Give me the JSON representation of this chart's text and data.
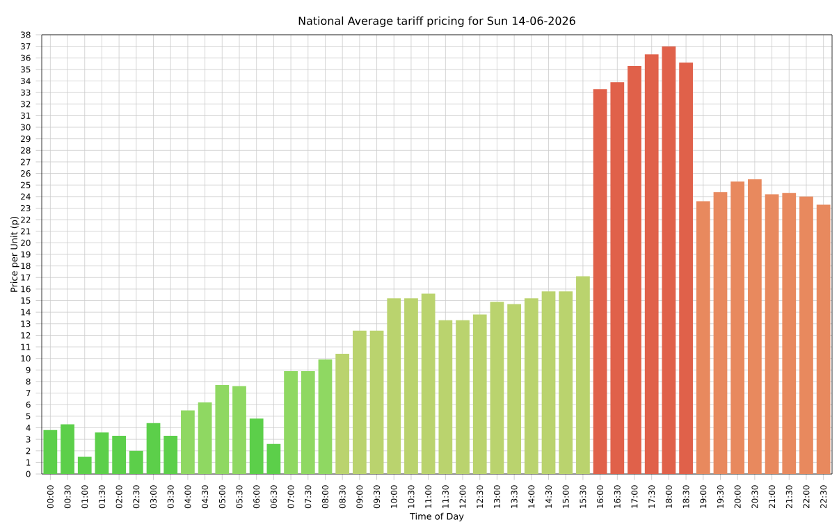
{
  "chart_data": {
    "type": "bar",
    "title": "National Average tariff pricing for Sun 14-06-2026",
    "xlabel": "Time of Day",
    "ylabel": "Price per Unit (p)",
    "categories": [
      "00:00",
      "00:30",
      "01:00",
      "01:30",
      "02:00",
      "02:30",
      "03:00",
      "03:30",
      "04:00",
      "04:30",
      "05:00",
      "05:30",
      "06:00",
      "06:30",
      "07:00",
      "07:30",
      "08:00",
      "08:30",
      "09:00",
      "09:30",
      "10:00",
      "10:30",
      "11:00",
      "11:30",
      "12:00",
      "12:30",
      "13:00",
      "13:30",
      "14:00",
      "14:30",
      "15:00",
      "15:30",
      "16:00",
      "16:30",
      "17:00",
      "17:30",
      "18:00",
      "18:30",
      "19:00",
      "19:30",
      "20:00",
      "20:30",
      "21:00",
      "21:30",
      "22:00",
      "22:30"
    ],
    "values": [
      3.8,
      4.3,
      1.5,
      3.6,
      3.3,
      2.0,
      4.4,
      3.3,
      5.5,
      6.2,
      7.7,
      7.6,
      4.8,
      2.6,
      8.9,
      8.9,
      9.9,
      10.4,
      12.4,
      12.4,
      15.2,
      15.2,
      15.6,
      13.3,
      13.3,
      13.8,
      14.9,
      14.7,
      15.2,
      15.8,
      15.8,
      17.1,
      33.3,
      33.9,
      35.3,
      36.3,
      37.0,
      35.6,
      23.6,
      24.4,
      25.3,
      25.5,
      24.2,
      24.3,
      24.0,
      23.3
    ],
    "colors": [
      "#5ccf4a",
      "#5ccf4a",
      "#5ccf4a",
      "#5ccf4a",
      "#5ccf4a",
      "#5ccf4a",
      "#5ccf4a",
      "#5ccf4a",
      "#8fd862",
      "#8fd862",
      "#8fd862",
      "#8fd862",
      "#5ccf4a",
      "#5ccf4a",
      "#8fd862",
      "#8fd862",
      "#8fd862",
      "#bad36e",
      "#bad36e",
      "#bad36e",
      "#bad36e",
      "#bad36e",
      "#bad36e",
      "#bad36e",
      "#bad36e",
      "#bad36e",
      "#bad36e",
      "#bad36e",
      "#bad36e",
      "#bad36e",
      "#bad36e",
      "#bad36e",
      "#e0614a",
      "#e0614a",
      "#e0614a",
      "#e0614a",
      "#e0614a",
      "#e0614a",
      "#e8895e",
      "#e8895e",
      "#e8895e",
      "#e8895e",
      "#e8895e",
      "#e8895e",
      "#e8895e",
      "#e8895e"
    ],
    "ylim": [
      0,
      38
    ],
    "yticks": [
      0,
      1,
      2,
      3,
      4,
      5,
      6,
      7,
      8,
      9,
      10,
      11,
      12,
      13,
      14,
      15,
      16,
      17,
      18,
      19,
      20,
      21,
      22,
      23,
      24,
      25,
      26,
      27,
      28,
      29,
      30,
      31,
      32,
      33,
      34,
      35,
      36,
      37,
      38
    ],
    "grid": true
  }
}
